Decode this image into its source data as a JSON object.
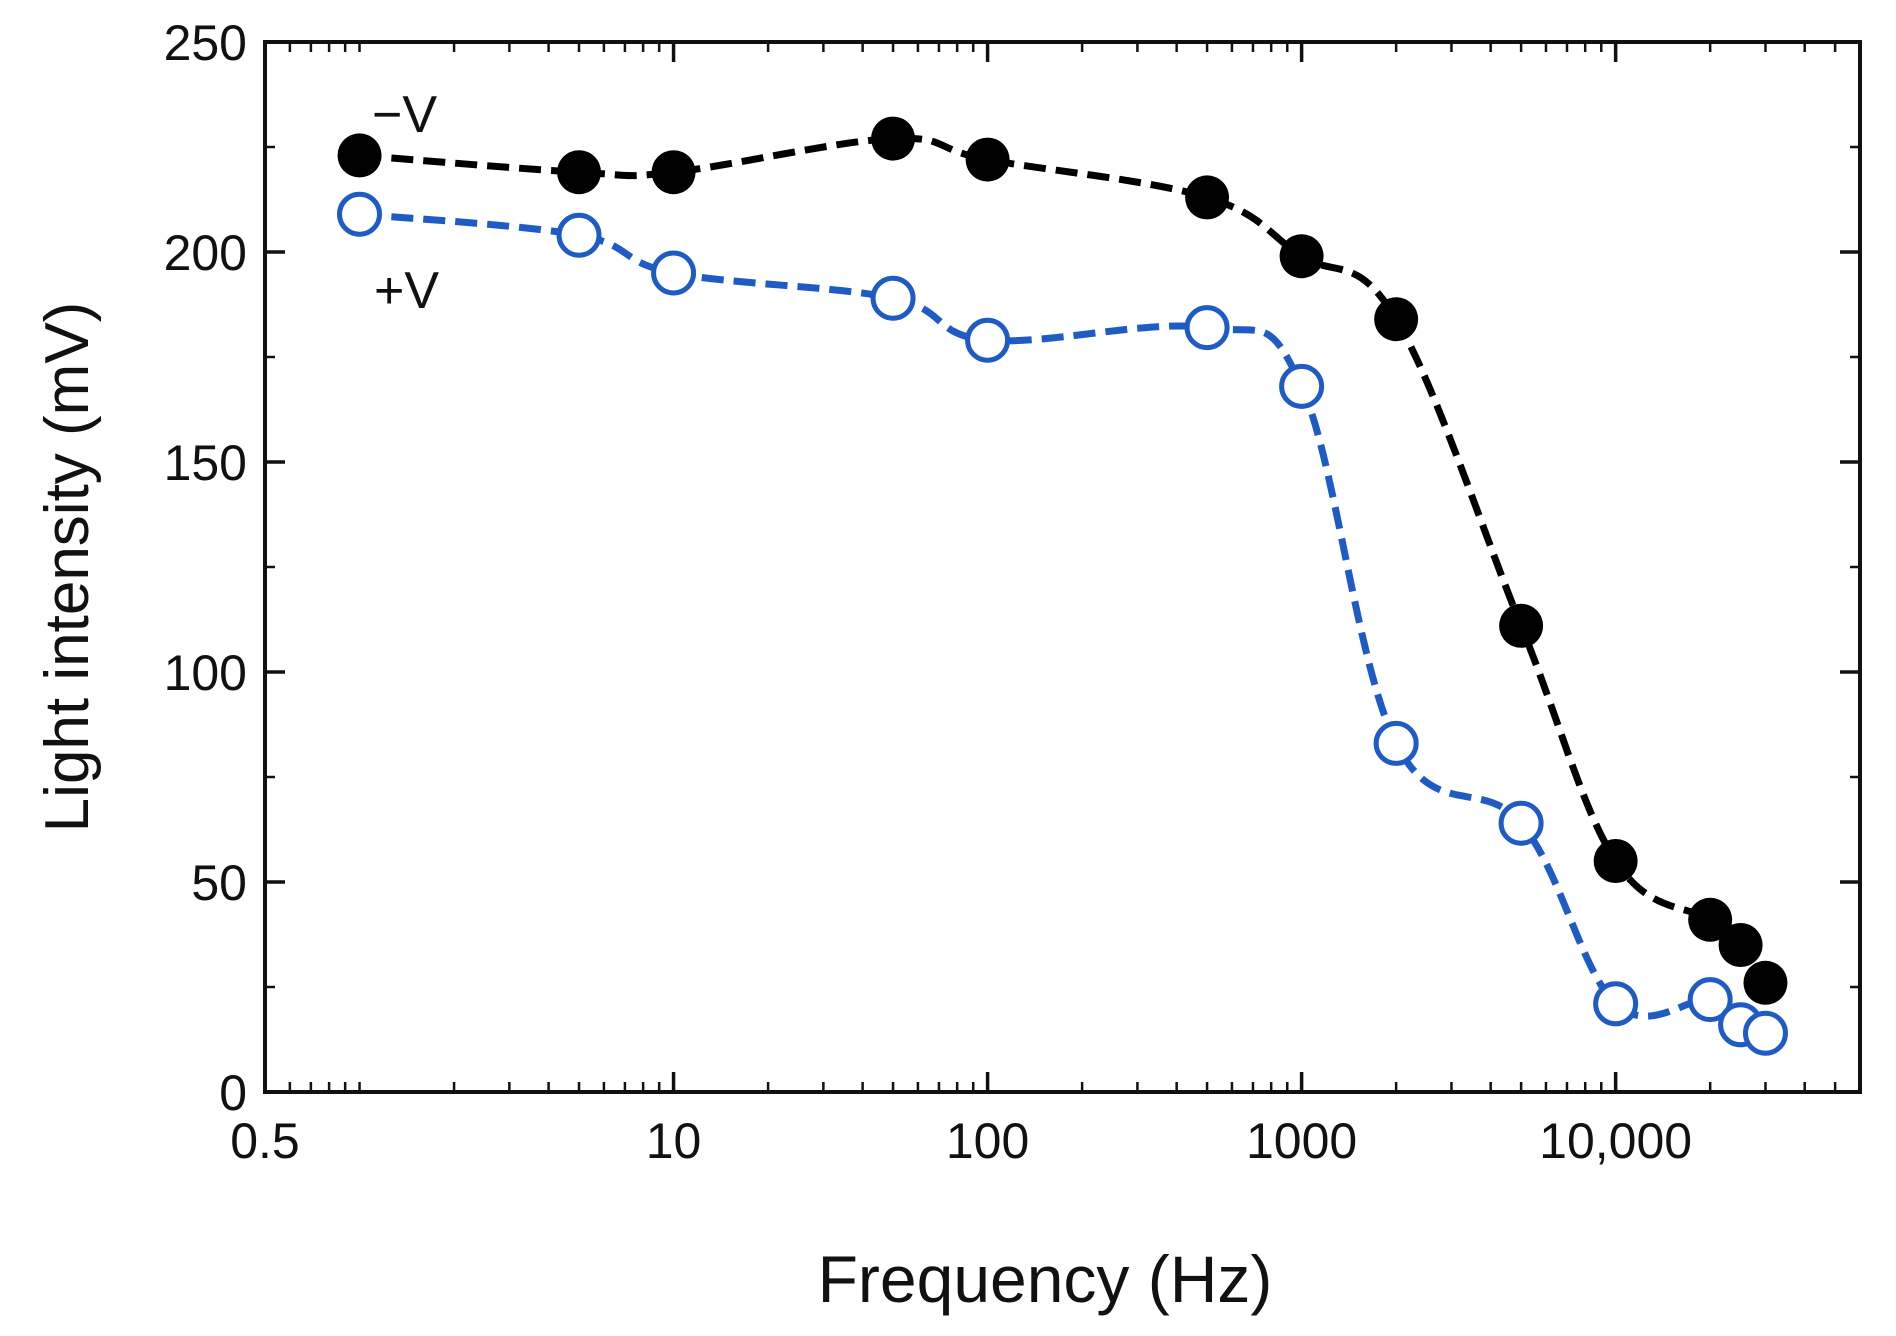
{
  "chart_data": {
    "type": "line",
    "xscale": "log",
    "xlabel": "Frequency (Hz)",
    "ylabel": "Light intensity (mV)",
    "xlim": [
      0.5,
      60000
    ],
    "ylim": [
      0,
      250
    ],
    "xticks": [
      {
        "value": 0.5,
        "label": "0.5"
      },
      {
        "value": 10,
        "label": "10"
      },
      {
        "value": 100,
        "label": "100"
      },
      {
        "value": 1000,
        "label": "1000"
      },
      {
        "value": 10000,
        "label": "10,000"
      }
    ],
    "yticks": [
      {
        "value": 0,
        "label": "0"
      },
      {
        "value": 50,
        "label": "50"
      },
      {
        "value": 100,
        "label": "100"
      },
      {
        "value": 150,
        "label": "150"
      },
      {
        "value": 200,
        "label": "200"
      },
      {
        "value": 250,
        "label": "250"
      }
    ],
    "series": [
      {
        "name": "−V",
        "label": "−V",
        "color": "#000000",
        "marker": "filled-circle",
        "x": [
          1,
          5,
          10,
          50,
          100,
          500,
          1000,
          2000,
          5000,
          10000,
          20000,
          25000,
          30000
        ],
        "y": [
          223,
          219,
          219,
          227,
          222,
          213,
          199,
          184,
          111,
          55,
          41,
          35,
          26
        ]
      },
      {
        "name": "+V",
        "label": "+V",
        "color": "#1f5bc4",
        "marker": "open-circle",
        "x": [
          1,
          5,
          10,
          50,
          100,
          500,
          1000,
          2000,
          5000,
          10000,
          20000,
          25000,
          30000
        ],
        "y": [
          209,
          204,
          195,
          189,
          179,
          182,
          168,
          83,
          64,
          21,
          22,
          16,
          14
        ]
      }
    ],
    "legend": "inline-labels-top-left",
    "grid": false
  }
}
